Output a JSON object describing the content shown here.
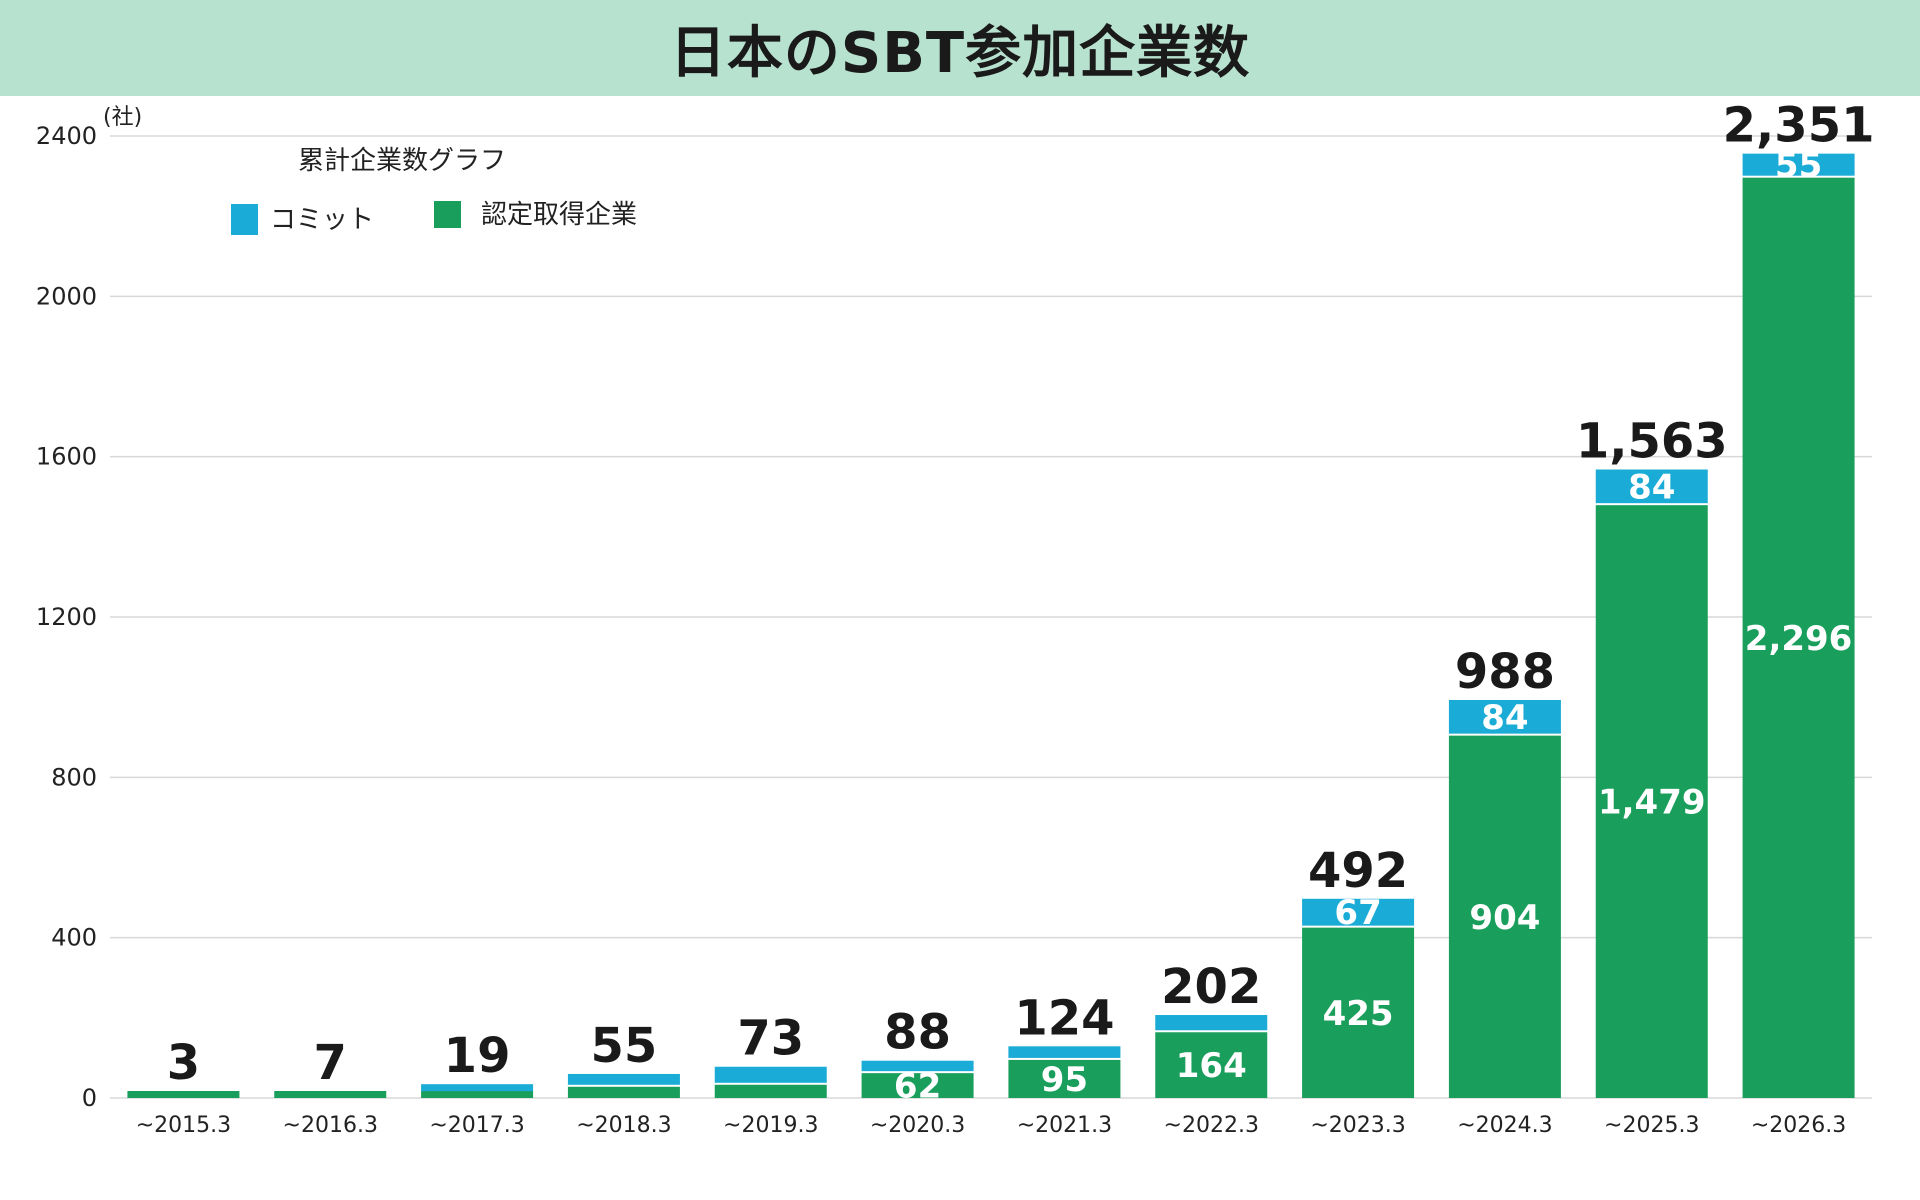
{
  "chart_data": {
    "type": "bar",
    "stacked": true,
    "title": "日本のSBT参加企業数",
    "unit": "(社)",
    "legend_title": "累計企業数グラフ",
    "legend_position": "top-left",
    "grid": true,
    "ylim": [
      0,
      2400
    ],
    "yticks": [
      0,
      400,
      800,
      1200,
      1600,
      2000,
      2400
    ],
    "categories": [
      "~2015.3",
      "~2016.3",
      "~2017.3",
      "~2018.3",
      "~2019.3",
      "~2020.3",
      "~2021.3",
      "~2022.3",
      "~2023.3",
      "~2024.3",
      "~2025.3",
      "~2026.3"
    ],
    "series": [
      {
        "name": "認定取得企業",
        "color": "#1a9e5c",
        "values": [
          3,
          7,
          12,
          28,
          33,
          62,
          95,
          164,
          425,
          904,
          1479,
          2296
        ],
        "labels": [
          "",
          "",
          "",
          "",
          "",
          "62",
          "95",
          "164",
          "425",
          "904",
          "1,479",
          "2,296"
        ]
      },
      {
        "name": "コミット",
        "color": "#1aacd6",
        "values": [
          0,
          0,
          7,
          27,
          40,
          26,
          29,
          38,
          67,
          84,
          84,
          55
        ],
        "labels": [
          "",
          "",
          "",
          "",
          "",
          "",
          "",
          "",
          "67",
          "84",
          "84",
          "55"
        ]
      }
    ],
    "totals": [
      3,
      7,
      19,
      55,
      73,
      88,
      124,
      202,
      492,
      988,
      1563,
      2351
    ],
    "total_labels": [
      "3",
      "7",
      "19",
      "55",
      "73",
      "88",
      "124",
      "202",
      "492",
      "988",
      "1,563",
      "2,351"
    ]
  }
}
